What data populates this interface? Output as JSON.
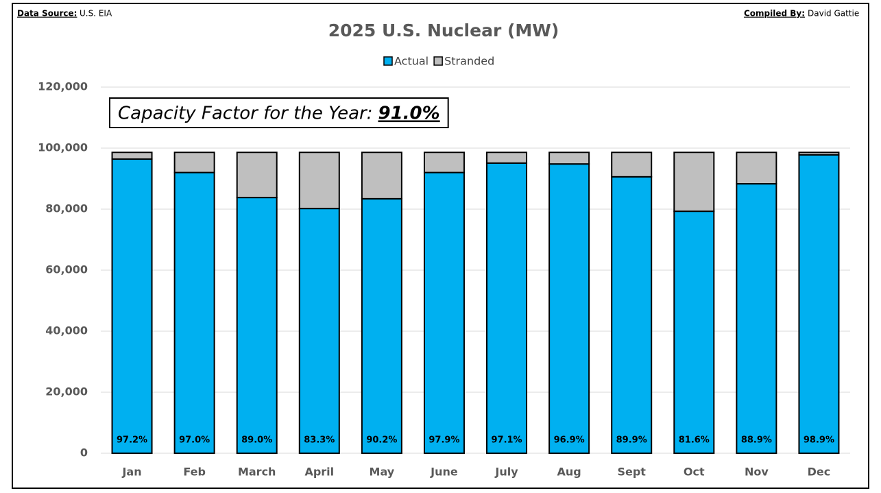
{
  "chart_data": {
    "type": "stacked-bar",
    "title": "2025 U.S. Nuclear (MW)",
    "source_label": "Data Source:",
    "source": "U.S. EIA",
    "compiled_label": "Compiled By:",
    "compiled": "David Gattie",
    "annotation": "Capacity Factor for the Year:",
    "annotation_value": "91.0%",
    "categories": [
      "Jan",
      "Feb",
      "March",
      "April",
      "May",
      "June",
      "July",
      "Aug",
      "Sept",
      "Oct",
      "Nov",
      "Dec"
    ],
    "series": [
      {
        "name": "Actual",
        "color": "#00b0f0",
        "values": [
          96400,
          92000,
          83800,
          80200,
          83400,
          92000,
          95100,
          94800,
          90600,
          79300,
          88300,
          97800
        ]
      },
      {
        "name": "Stranded",
        "color": "#bfbfbf",
        "values": [
          2200,
          6600,
          14800,
          18400,
          15200,
          6600,
          3500,
          3800,
          8000,
          19300,
          10300,
          800
        ]
      }
    ],
    "capacity_factor_labels": [
      "97.2%",
      "97.0%",
      "89.0%",
      "83.3%",
      "90.2%",
      "97.9%",
      "97.1%",
      "96.9%",
      "89.9%",
      "81.6%",
      "88.9%",
      "98.9%"
    ],
    "ylim": [
      0,
      130000
    ],
    "yticks": [
      0,
      {
        "value": 20000,
        "label": "20,000"
      },
      {
        "value": 40000,
        "label": "40,000"
      },
      {
        "value": 60000,
        "label": "60,000"
      },
      {
        "value": 80000,
        "label": "80,000"
      },
      {
        "value": 100000,
        "label": "100,000"
      },
      {
        "value": 120000,
        "label": "120,000"
      }
    ],
    "grid": true,
    "legend": "top"
  }
}
